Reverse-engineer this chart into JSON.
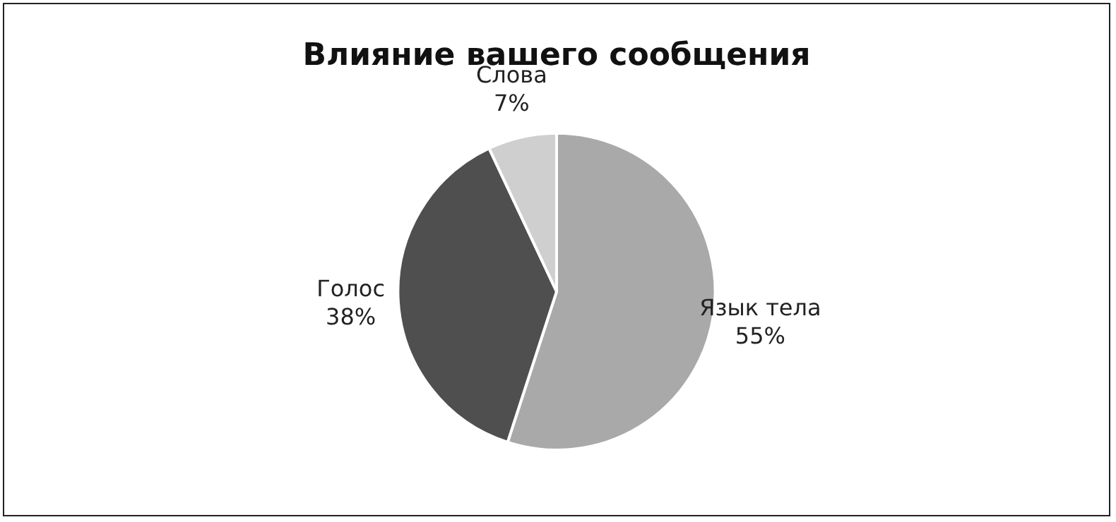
{
  "chart_data": {
    "type": "pie",
    "title": "Влияние вашего сообщения",
    "categories": [
      "Язык тела",
      "Голос",
      "Слова"
    ],
    "values": [
      55,
      38,
      7
    ],
    "value_labels": [
      "55%",
      "38%",
      "7%"
    ],
    "colors": [
      "#a9a9a9",
      "#4f4f4f",
      "#cfcfcf"
    ],
    "legend": false
  }
}
